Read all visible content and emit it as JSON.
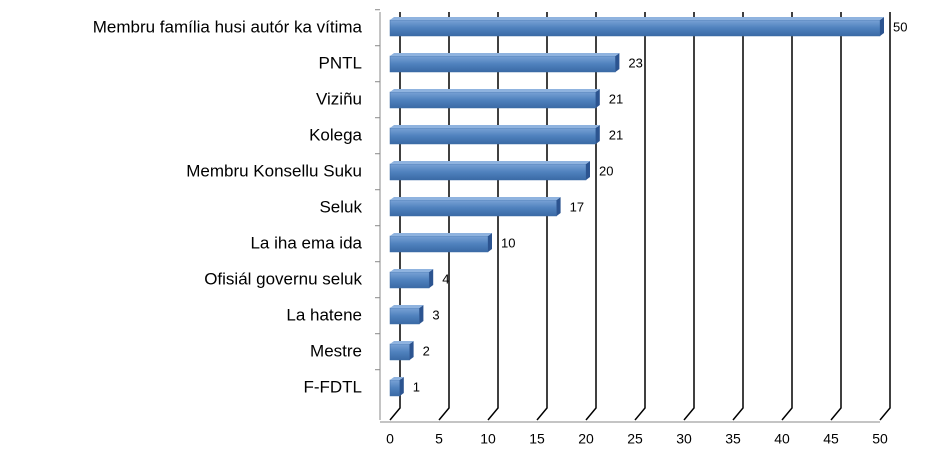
{
  "chart_data": {
    "type": "bar",
    "orientation": "horizontal",
    "categories": [
      "Membru família husi autór ka vítima",
      "PNTL",
      "Viziñu",
      "Kolega",
      "Membru Konsellu Suku",
      "Seluk",
      "La iha ema ida",
      "Ofisiál governu seluk",
      "La hatene",
      "Mestre",
      "F-FDTL"
    ],
    "values": [
      50,
      23,
      21,
      21,
      20,
      17,
      10,
      4,
      3,
      2,
      1
    ],
    "color": "#4f81bd",
    "xlim": [
      0,
      50
    ],
    "xticks": [
      0,
      5,
      10,
      15,
      20,
      25,
      30,
      35,
      40,
      45,
      50
    ],
    "grid": true
  }
}
